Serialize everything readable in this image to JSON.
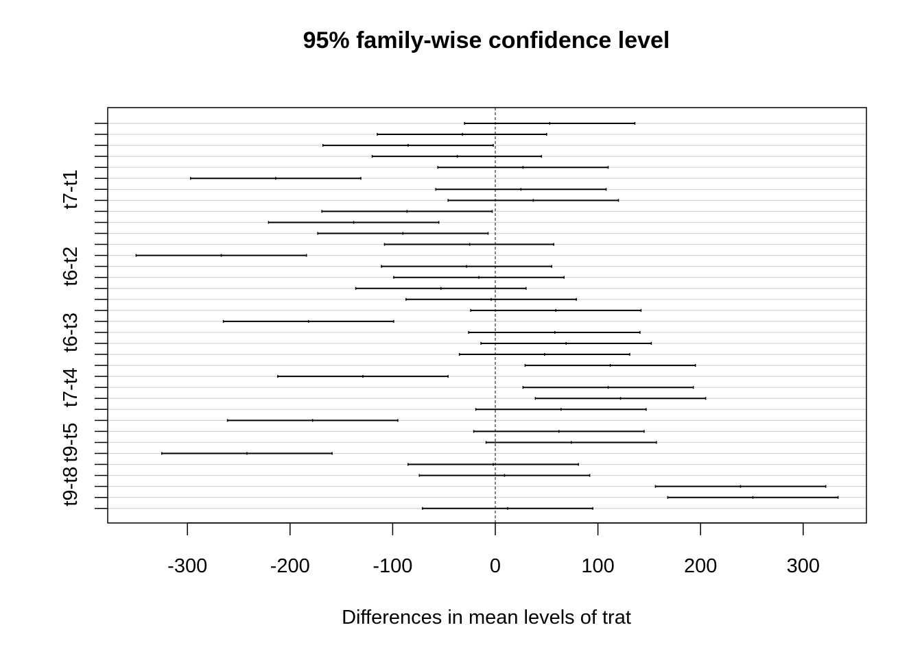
{
  "chart_data": {
    "type": "errorbar",
    "title": "95% family-wise confidence level",
    "xlabel": "Differences in mean levels of trat",
    "ylabel": "",
    "xlim": [
      -378,
      360
    ],
    "xticks": [
      -300,
      -200,
      -100,
      0,
      100,
      200,
      300
    ],
    "xtick_labels": [
      "-300",
      "-200",
      "-100",
      "0",
      "100",
      "200",
      "300"
    ],
    "reference_line": 0,
    "grid": "horizontal",
    "row_count": 36,
    "visible_row_labels": [
      {
        "row": 6,
        "label": "t7-t1"
      },
      {
        "row": 13,
        "label": "t6-t2"
      },
      {
        "row": 19,
        "label": "t6-t3"
      },
      {
        "row": 24,
        "label": "t7-t4"
      },
      {
        "row": 29,
        "label": "t9-t5"
      },
      {
        "row": 33,
        "label": "t9-t8"
      }
    ],
    "intervals": [
      {
        "lwr": -30,
        "diff": 53,
        "upr": 136
      },
      {
        "lwr": -115,
        "diff": -32,
        "upr": 50
      },
      {
        "lwr": -168,
        "diff": -85,
        "upr": -2
      },
      {
        "lwr": -120,
        "diff": -37,
        "upr": 45
      },
      {
        "lwr": -56,
        "diff": 27,
        "upr": 110
      },
      {
        "lwr": -297,
        "diff": -214,
        "upr": -131
      },
      {
        "lwr": -58,
        "diff": 25,
        "upr": 108
      },
      {
        "lwr": -46,
        "diff": 37,
        "upr": 120
      },
      {
        "lwr": -169,
        "diff": -86,
        "upr": -3
      },
      {
        "lwr": -221,
        "diff": -138,
        "upr": -55
      },
      {
        "lwr": -173,
        "diff": -90,
        "upr": -7
      },
      {
        "lwr": -108,
        "diff": -25,
        "upr": 57
      },
      {
        "lwr": -350,
        "diff": -267,
        "upr": -184
      },
      {
        "lwr": -111,
        "diff": -28,
        "upr": 55
      },
      {
        "lwr": -99,
        "diff": -16,
        "upr": 67
      },
      {
        "lwr": -136,
        "diff": -53,
        "upr": 30
      },
      {
        "lwr": -87,
        "diff": -4,
        "upr": 79
      },
      {
        "lwr": -24,
        "diff": 59,
        "upr": 142
      },
      {
        "lwr": -265,
        "diff": -182,
        "upr": -99
      },
      {
        "lwr": -26,
        "diff": 58,
        "upr": 141
      },
      {
        "lwr": -14,
        "diff": 69,
        "upr": 152
      },
      {
        "lwr": -35,
        "diff": 48,
        "upr": 131
      },
      {
        "lwr": 29,
        "diff": 112,
        "upr": 195
      },
      {
        "lwr": -212,
        "diff": -129,
        "upr": -46
      },
      {
        "lwr": 27,
        "diff": 110,
        "upr": 193
      },
      {
        "lwr": 39,
        "diff": 122,
        "upr": 205
      },
      {
        "lwr": -19,
        "diff": 64,
        "upr": 147
      },
      {
        "lwr": -261,
        "diff": -178,
        "upr": -95
      },
      {
        "lwr": -21,
        "diff": 62,
        "upr": 145
      },
      {
        "lwr": -9,
        "diff": 74,
        "upr": 157
      },
      {
        "lwr": -325,
        "diff": -242,
        "upr": -159
      },
      {
        "lwr": -85,
        "diff": -2,
        "upr": 81
      },
      {
        "lwr": -74,
        "diff": 9,
        "upr": 92
      },
      {
        "lwr": 156,
        "diff": 239,
        "upr": 322
      },
      {
        "lwr": 168,
        "diff": 251,
        "upr": 334
      },
      {
        "lwr": -71,
        "diff": 12,
        "upr": 95
      }
    ]
  }
}
